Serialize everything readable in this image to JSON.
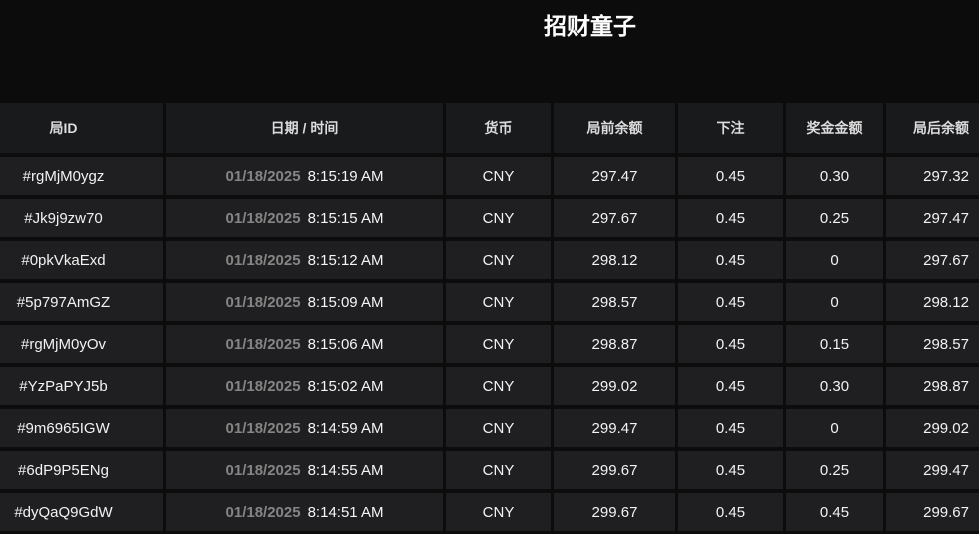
{
  "page": {
    "title": "招财童子"
  },
  "colors": {
    "page_bg": "#0c0c0c",
    "header_bg": "#191a1c",
    "row_bg": "#1f1f21",
    "text": "#f2f2f2",
    "muted_date": "#858585"
  },
  "table": {
    "headers": [
      "局ID",
      "日期 / 时间",
      "货币",
      "局前余额",
      "下注",
      "奖金金额",
      "局后余额"
    ],
    "rows": [
      {
        "id": "#rgMjM0ygz",
        "date": "01/18/2025",
        "time": "8:15:19 AM",
        "currency": "CNY",
        "balance_before": "297.47",
        "bet": "0.45",
        "prize": "0.30",
        "balance_after": "297.32"
      },
      {
        "id": "#Jk9j9zw70",
        "date": "01/18/2025",
        "time": "8:15:15 AM",
        "currency": "CNY",
        "balance_before": "297.67",
        "bet": "0.45",
        "prize": "0.25",
        "balance_after": "297.47"
      },
      {
        "id": "#0pkVkaExd",
        "date": "01/18/2025",
        "time": "8:15:12 AM",
        "currency": "CNY",
        "balance_before": "298.12",
        "bet": "0.45",
        "prize": "0",
        "balance_after": "297.67"
      },
      {
        "id": "#5p797AmGZ",
        "date": "01/18/2025",
        "time": "8:15:09 AM",
        "currency": "CNY",
        "balance_before": "298.57",
        "bet": "0.45",
        "prize": "0",
        "balance_after": "298.12"
      },
      {
        "id": "#rgMjM0yOv",
        "date": "01/18/2025",
        "time": "8:15:06 AM",
        "currency": "CNY",
        "balance_before": "298.87",
        "bet": "0.45",
        "prize": "0.15",
        "balance_after": "298.57"
      },
      {
        "id": "#YzPaPYJ5b",
        "date": "01/18/2025",
        "time": "8:15:02 AM",
        "currency": "CNY",
        "balance_before": "299.02",
        "bet": "0.45",
        "prize": "0.30",
        "balance_after": "298.87"
      },
      {
        "id": "#9m6965IGW",
        "date": "01/18/2025",
        "time": "8:14:59 AM",
        "currency": "CNY",
        "balance_before": "299.47",
        "bet": "0.45",
        "prize": "0",
        "balance_after": "299.02"
      },
      {
        "id": "#6dP9P5ENg",
        "date": "01/18/2025",
        "time": "8:14:55 AM",
        "currency": "CNY",
        "balance_before": "299.67",
        "bet": "0.45",
        "prize": "0.25",
        "balance_after": "299.47"
      },
      {
        "id": "#dyQaQ9GdW",
        "date": "01/18/2025",
        "time": "8:14:51 AM",
        "currency": "CNY",
        "balance_before": "299.67",
        "bet": "0.45",
        "prize": "0.45",
        "balance_after": "299.67"
      }
    ]
  }
}
